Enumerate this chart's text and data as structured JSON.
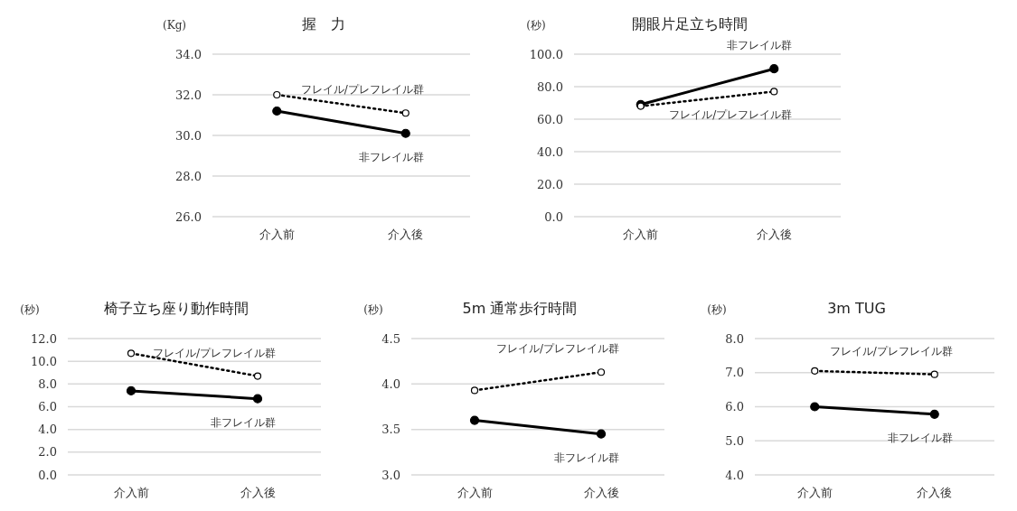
{
  "chart_data": [
    {
      "type": "line",
      "title": "握　力",
      "ylabel": "(Kg)",
      "categories": [
        "介入前",
        "介入後"
      ],
      "series": [
        {
          "name": "フレイル/プレフレイル群",
          "color": "#000000",
          "values": [
            32.0,
            31.1
          ],
          "line_style": "dotted",
          "marker": "circle"
        },
        {
          "name": "非フレイル群",
          "color": "#000000",
          "values": [
            31.2,
            30.1
          ],
          "line_style": "solid",
          "marker": "circle"
        }
      ],
      "ylim": [
        26,
        34
      ],
      "yticks": [
        {
          "value": 26,
          "label": "26.0"
        },
        {
          "value": 28,
          "label": "28.0"
        },
        {
          "value": 30,
          "label": "30.0"
        },
        {
          "value": 32,
          "label": "32.0"
        },
        {
          "value": 34,
          "label": "34.0"
        }
      ],
      "grid": "y"
    },
    {
      "type": "line",
      "title": "開眼片足立ち時間",
      "ylabel": "(秒)",
      "categories": [
        "介入前",
        "介入後"
      ],
      "series": [
        {
          "name": "フレイル/プレフレイル群",
          "color": "#000000",
          "values": [
            68,
            77
          ],
          "line_style": "dotted",
          "marker": "circle"
        },
        {
          "name": "非フレイル群",
          "color": "#000000",
          "values": [
            69,
            91
          ],
          "line_style": "solid",
          "marker": "circle"
        }
      ],
      "ylim": [
        0,
        100
      ],
      "yticks": [
        {
          "value": 0,
          "label": "0.0"
        },
        {
          "value": 20,
          "label": "20.0"
        },
        {
          "value": 40,
          "label": "40.0"
        },
        {
          "value": 60,
          "label": "60.0"
        },
        {
          "value": 80,
          "label": "80.0"
        },
        {
          "value": 100,
          "label": "100.0"
        }
      ],
      "grid": "y"
    },
    {
      "type": "line",
      "title": "椅子立ち座り動作時間",
      "ylabel": "(秒)",
      "categories": [
        "介入前",
        "介入後"
      ],
      "series": [
        {
          "name": "フレイル/プレフレイル群",
          "color": "#000000",
          "values": [
            10.7,
            8.7
          ],
          "line_style": "dotted",
          "marker": "circle"
        },
        {
          "name": "非フレイル群",
          "color": "#000000",
          "values": [
            7.4,
            6.7
          ],
          "line_style": "solid",
          "marker": "circle"
        }
      ],
      "ylim": [
        0,
        12
      ],
      "yticks": [
        {
          "value": 0,
          "label": "0.0"
        },
        {
          "value": 2,
          "label": "2.0"
        },
        {
          "value": 4,
          "label": "4.0"
        },
        {
          "value": 6,
          "label": "6.0"
        },
        {
          "value": 8,
          "label": "8.0"
        },
        {
          "value": 10,
          "label": "10.0"
        },
        {
          "value": 12,
          "label": "12.0"
        }
      ],
      "grid": "y"
    },
    {
      "type": "line",
      "title": "5m 通常歩行時間",
      "ylabel": "(秒)",
      "categories": [
        "介入前",
        "介入後"
      ],
      "series": [
        {
          "name": "フレイル/プレフレイル群",
          "color": "#000000",
          "values": [
            3.93,
            4.13
          ],
          "line_style": "dotted",
          "marker": "circle"
        },
        {
          "name": "非フレイル群",
          "color": "#000000",
          "values": [
            3.6,
            3.45
          ],
          "line_style": "solid",
          "marker": "circle"
        }
      ],
      "ylim": [
        3,
        4.5
      ],
      "yticks": [
        {
          "value": 3,
          "label": "3.0"
        },
        3.5,
        {
          "value": 4,
          "label": "4.0"
        },
        4.5
      ],
      "grid": "y"
    },
    {
      "type": "line",
      "title": "3m TUG",
      "ylabel": "(秒)",
      "categories": [
        "介入前",
        "介入後"
      ],
      "series": [
        {
          "name": "フレイル/プレフレイル群",
          "color": "#000000",
          "values": [
            7.05,
            6.95
          ],
          "line_style": "dotted",
          "marker": "circle"
        },
        {
          "name": "非フレイル群",
          "color": "#000000",
          "values": [
            6.0,
            5.78
          ],
          "line_style": "solid",
          "marker": "circle"
        }
      ],
      "ylim": [
        4,
        8
      ],
      "yticks": [
        {
          "value": 4,
          "label": "4.0"
        },
        {
          "value": 5,
          "label": "5.0"
        },
        {
          "value": 6,
          "label": "6.0"
        },
        {
          "value": 7,
          "label": "7.0"
        },
        {
          "value": 8,
          "label": "8.0"
        }
      ],
      "grid": "y"
    }
  ]
}
